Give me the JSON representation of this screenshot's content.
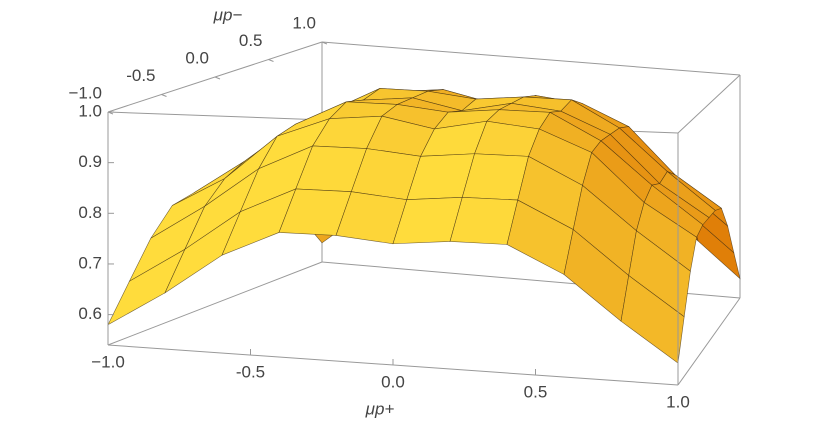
{
  "chart_data": {
    "type": "surface",
    "xlabel": "μp+",
    "ylabel": "μp−",
    "x": [
      -1,
      -0.8,
      -0.6,
      -0.4,
      -0.2,
      0,
      0.2,
      0.4,
      0.6,
      0.8,
      1
    ],
    "y": [
      -1,
      -0.8,
      -0.6,
      -0.4,
      -0.2,
      0,
      0.2,
      0.4,
      0.6,
      0.8,
      1
    ],
    "z": [
      [
        0.58,
        0.65,
        0.73,
        0.78,
        0.78,
        0.77,
        0.78,
        0.78,
        0.73,
        0.65,
        0.58
      ],
      [
        0.65,
        0.72,
        0.8,
        0.85,
        0.85,
        0.84,
        0.85,
        0.85,
        0.8,
        0.72,
        0.65
      ],
      [
        0.72,
        0.79,
        0.87,
        0.92,
        0.92,
        0.91,
        0.92,
        0.92,
        0.87,
        0.79,
        0.72
      ],
      [
        0.77,
        0.83,
        0.92,
        0.96,
        0.97,
        0.95,
        0.97,
        0.96,
        0.92,
        0.83,
        0.77
      ],
      [
        0.78,
        0.85,
        0.93,
        0.98,
        0.98,
        0.97,
        0.98,
        0.98,
        0.93,
        0.85,
        0.78
      ],
      [
        0.78,
        0.84,
        0.93,
        0.97,
        0.98,
        0.96,
        0.98,
        0.97,
        0.93,
        0.84,
        0.78
      ],
      [
        0.78,
        0.85,
        0.93,
        0.98,
        0.98,
        0.97,
        0.98,
        0.98,
        0.93,
        0.85,
        0.78
      ],
      [
        0.77,
        0.83,
        0.92,
        0.96,
        0.97,
        0.95,
        0.97,
        0.96,
        0.92,
        0.83,
        0.77
      ],
      [
        0.72,
        0.79,
        0.87,
        0.92,
        0.92,
        0.91,
        0.92,
        0.92,
        0.87,
        0.79,
        0.72
      ],
      [
        0.65,
        0.72,
        0.8,
        0.85,
        0.85,
        0.84,
        0.85,
        0.85,
        0.8,
        0.72,
        0.65
      ],
      [
        0.58,
        0.65,
        0.73,
        0.78,
        0.78,
        0.77,
        0.78,
        0.78,
        0.73,
        0.65,
        0.58
      ]
    ],
    "xlim": [
      -1,
      1
    ],
    "ylim": [
      -1,
      1
    ],
    "zlim": [
      0.54,
      1
    ],
    "xticks": [
      {
        "value": -1,
        "label": "−1.0"
      },
      -0.5,
      {
        "value": 0,
        "label": "0.0"
      },
      0.5,
      {
        "value": 1,
        "label": "1.0"
      }
    ],
    "yticks": [
      {
        "value": -1,
        "label": "−1.0"
      },
      -0.5,
      {
        "value": 0,
        "label": "0.0"
      },
      0.5,
      {
        "value": 1,
        "label": "1.0"
      }
    ],
    "zticks": [
      0.6,
      0.7,
      0.8,
      0.9,
      {
        "value": 1,
        "label": "1.0"
      }
    ],
    "colors": [
      "#e07f08",
      "#ffdc3c"
    ]
  }
}
